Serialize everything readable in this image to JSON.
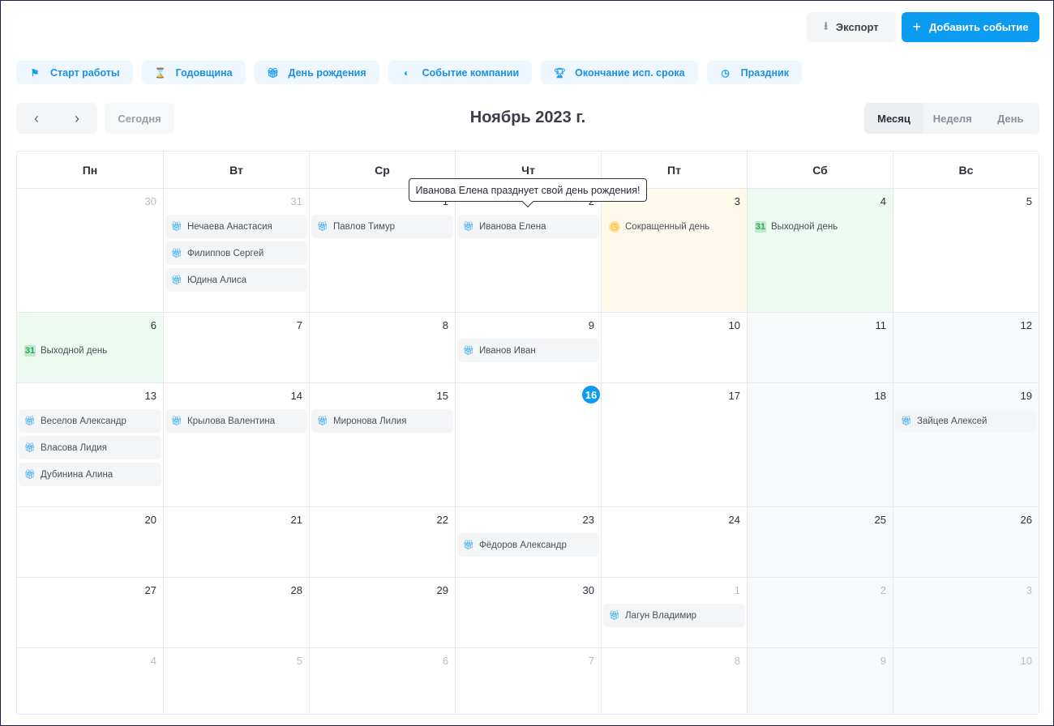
{
  "toolbar": {
    "export_label": "Экспорт",
    "add_label": "Добавить событие"
  },
  "filters": [
    {
      "label": "Старт работы",
      "icon": "flag-icon"
    },
    {
      "label": "Годовщина",
      "icon": "hourglass-icon"
    },
    {
      "label": "День рождения",
      "icon": "gift-icon"
    },
    {
      "label": "Событие компании",
      "icon": "circle-icon"
    },
    {
      "label": "Окончание исп. срока",
      "icon": "trophy-icon"
    },
    {
      "label": "Праздник",
      "icon": "clock-icon"
    }
  ],
  "nav": {
    "prev": "‹",
    "next": "›",
    "today": "Сегодня"
  },
  "title": "Ноябрь 2023 г.",
  "views": [
    "Месяц",
    "Неделя",
    "День"
  ],
  "weekdays": [
    "Пн",
    "Вт",
    "Ср",
    "Чт",
    "Пт",
    "Сб",
    "Вс"
  ],
  "tooltip": "Иванова Елена празднует свой день рождения!",
  "today_day": 16,
  "weeks": [
    [
      {
        "d": "30",
        "m": true,
        "ev": []
      },
      {
        "d": "31",
        "m": true,
        "ev": [
          {
            "t": "Нечаева Анастасия",
            "k": "gift"
          },
          {
            "t": "Филиппов Сергей",
            "k": "gift"
          },
          {
            "t": "Юдина Алиса",
            "k": "gift"
          }
        ]
      },
      {
        "d": "1",
        "ev": [
          {
            "t": "Павлов Тимур",
            "k": "gift"
          }
        ]
      },
      {
        "d": "2",
        "ev": [
          {
            "t": "Иванова Елена",
            "k": "gift"
          }
        ]
      },
      {
        "d": "3",
        "bg": "yellow",
        "ev": [
          {
            "t": "Сокращенный день",
            "k": "clock"
          }
        ]
      },
      {
        "d": "4",
        "bg": "green",
        "ev": [
          {
            "t": "Выходной день",
            "k": "cal"
          }
        ]
      },
      {
        "d": "5",
        "ev": []
      }
    ],
    [
      {
        "d": "6",
        "bg": "green",
        "ev": [
          {
            "t": "Выходной день",
            "k": "cal"
          }
        ]
      },
      {
        "d": "7",
        "ev": []
      },
      {
        "d": "8",
        "ev": []
      },
      {
        "d": "9",
        "ev": [
          {
            "t": "Иванов Иван",
            "k": "gift"
          }
        ]
      },
      {
        "d": "10",
        "ev": []
      },
      {
        "d": "11",
        "ev": []
      },
      {
        "d": "12",
        "ev": []
      }
    ],
    [
      {
        "d": "13",
        "ev": [
          {
            "t": "Веселов Александр",
            "k": "gift"
          },
          {
            "t": "Власова Лидия",
            "k": "gift"
          },
          {
            "t": "Дубинина Алина",
            "k": "gift"
          }
        ]
      },
      {
        "d": "14",
        "ev": [
          {
            "t": "Крылова Валентина",
            "k": "gift"
          }
        ]
      },
      {
        "d": "15",
        "ev": [
          {
            "t": "Миронова Лилия",
            "k": "gift"
          }
        ]
      },
      {
        "d": "16",
        "ev": []
      },
      {
        "d": "17",
        "ev": []
      },
      {
        "d": "18",
        "ev": []
      },
      {
        "d": "19",
        "ev": [
          {
            "t": "Зайцев Алексей",
            "k": "gift"
          }
        ]
      }
    ],
    [
      {
        "d": "20",
        "ev": []
      },
      {
        "d": "21",
        "ev": []
      },
      {
        "d": "22",
        "ev": []
      },
      {
        "d": "23",
        "ev": [
          {
            "t": "Фёдоров Александр",
            "k": "gift"
          }
        ]
      },
      {
        "d": "24",
        "ev": []
      },
      {
        "d": "25",
        "ev": []
      },
      {
        "d": "26",
        "ev": []
      }
    ],
    [
      {
        "d": "27",
        "ev": []
      },
      {
        "d": "28",
        "ev": []
      },
      {
        "d": "29",
        "ev": []
      },
      {
        "d": "30",
        "ev": []
      },
      {
        "d": "1",
        "m": true,
        "ev": [
          {
            "t": "Лагун Владимир",
            "k": "gift"
          }
        ]
      },
      {
        "d": "2",
        "m": true,
        "ev": []
      },
      {
        "d": "3",
        "m": true,
        "ev": []
      }
    ],
    [
      {
        "d": "4",
        "m": true,
        "ev": []
      },
      {
        "d": "5",
        "m": true,
        "ev": []
      },
      {
        "d": "6",
        "m": true,
        "ev": []
      },
      {
        "d": "7",
        "m": true,
        "ev": []
      },
      {
        "d": "8",
        "m": true,
        "ev": []
      },
      {
        "d": "9",
        "m": true,
        "ev": []
      },
      {
        "d": "10",
        "m": true,
        "ev": []
      }
    ]
  ],
  "colors": {
    "accent": "#0b9cf1",
    "holiday_bg": "#edf9f1",
    "short_day_bg": "#fefaeb"
  }
}
